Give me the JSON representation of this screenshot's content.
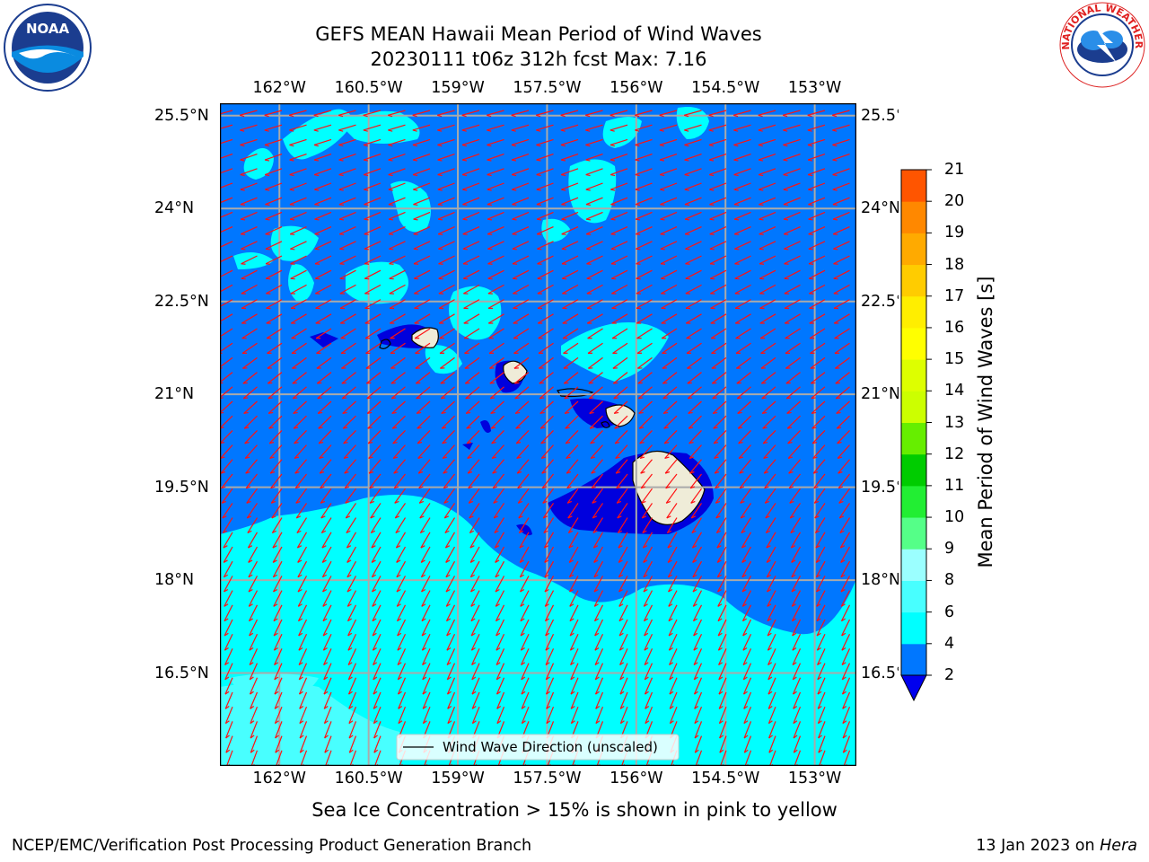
{
  "title": {
    "line1": "GEFS MEAN Hawaii Mean Period of Wind Waves",
    "line2": "20230111 t06z 312h fcst   Max: 7.16"
  },
  "footer": {
    "note": "Sea Ice Concentration > 15% is shown in pink to yellow",
    "credit": "NCEP/EMC/Verification Post Processing Product Generation Branch",
    "date": "13 Jan 2023 on ",
    "machine": "Hera"
  },
  "logos": {
    "left": {
      "icon": "noaa-logo-icon",
      "text": "NOAA"
    },
    "right": {
      "icon": "nws-logo-icon",
      "text": "NATIONAL WEATHER SERVICE"
    }
  },
  "map": {
    "lon_range": [
      -163.0,
      -152.3
    ],
    "lat_range": [
      15.0,
      25.7
    ],
    "lon_ticks": [
      "162°W",
      "160.5°W",
      "159°W",
      "157.5°W",
      "156°W",
      "154.5°W",
      "153°W"
    ],
    "lon_values": [
      -162,
      -160.5,
      -159,
      -157.5,
      -156,
      -154.5,
      -153
    ],
    "lat_ticks": [
      "25.5°N",
      "24°N",
      "22.5°N",
      "21°N",
      "19.5°N",
      "18°N",
      "16.5°N"
    ],
    "lat_values": [
      25.5,
      24,
      22.5,
      21,
      19.5,
      18,
      16.5
    ],
    "grid": true,
    "legend": {
      "label": "Wind Wave Direction (unscaled)",
      "placement": "lower-center"
    },
    "colors": {
      "ocean_2_4": "#0077ff",
      "ocean_4_6": "#00ffff",
      "ocean_6_8": "#48ffff",
      "ocean_lt_2": "#0000dd",
      "land": "#efecd8",
      "arrow": "#ff1111",
      "grid": "#aaaaaa"
    }
  },
  "colorbar": {
    "label": "Mean Period of Wind Waves [s]",
    "ticks": [
      "2",
      "4",
      "6",
      "8",
      "9",
      "10",
      "11",
      "12",
      "13",
      "14",
      "15",
      "16",
      "17",
      "18",
      "19",
      "20",
      "21"
    ],
    "colors": [
      "#0077ff",
      "#00ffff",
      "#48ffff",
      "#9bffff",
      "#55ff88",
      "#22ee33",
      "#00cc00",
      "#66ee00",
      "#ccff00",
      "#ddff00",
      "#ffff00",
      "#ffee00",
      "#ffcc00",
      "#ffaa00",
      "#ff8800",
      "#ff5500",
      "#ff2200",
      "#ff0000"
    ],
    "under_color": "#0000ee"
  }
}
